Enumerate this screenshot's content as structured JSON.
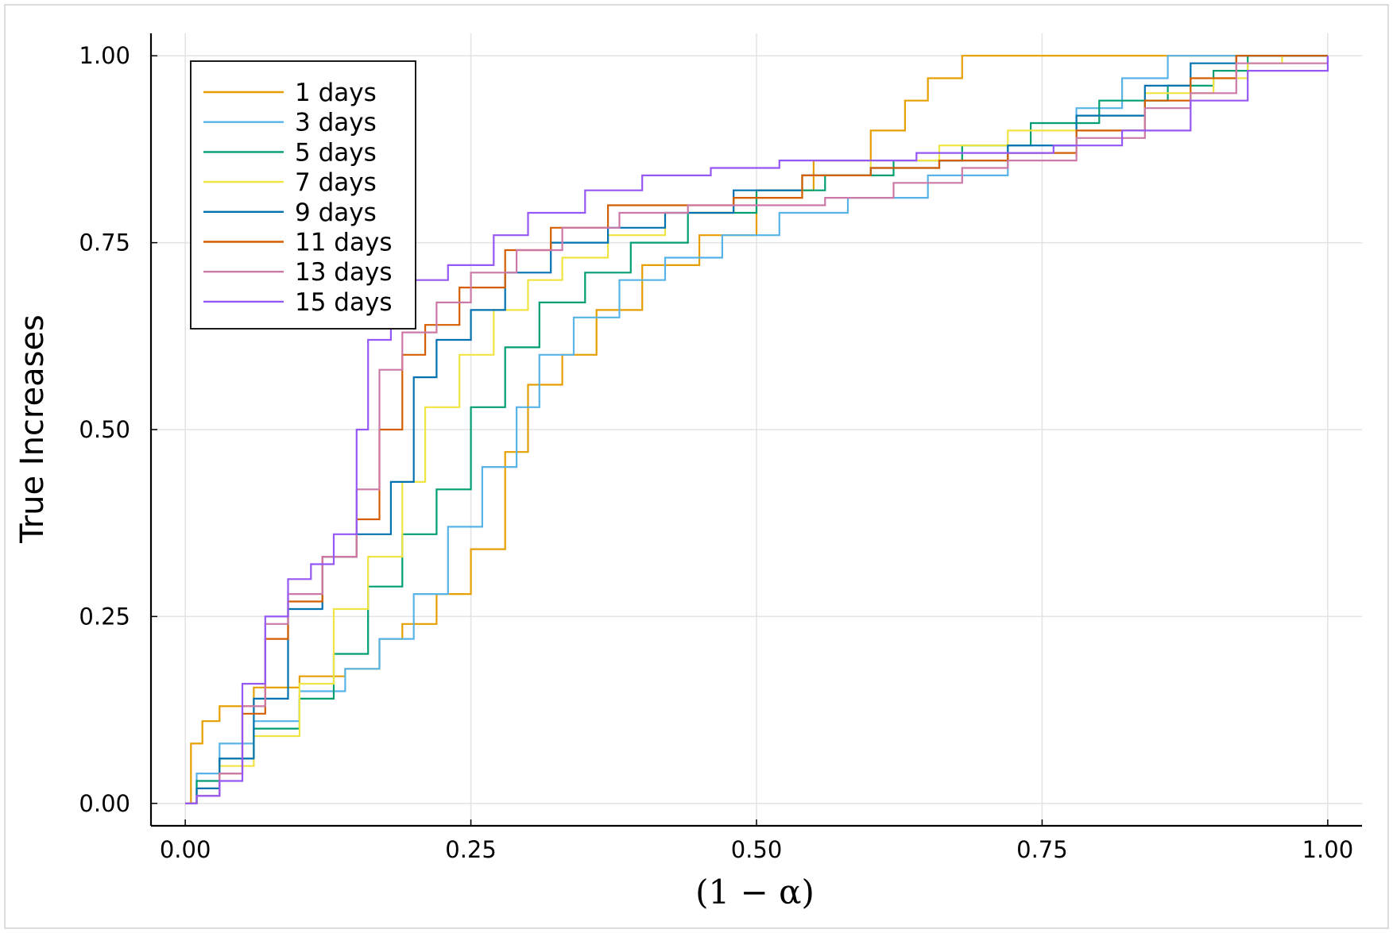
{
  "chart_data": {
    "type": "line",
    "title": "",
    "xlabel": "(1 − α)",
    "ylabel": "True Increases",
    "xlim": [
      -0.03,
      1.03
    ],
    "ylim": [
      -0.03,
      1.03
    ],
    "xticks": [
      "0.00",
      "0.25",
      "0.50",
      "0.75",
      "1.00"
    ],
    "yticks": [
      "0.00",
      "0.25",
      "0.50",
      "0.75",
      "1.00"
    ],
    "grid": true,
    "legend_position": "top-left",
    "series": [
      {
        "name": "1 days",
        "color": "#e69f00",
        "x": [
          0,
          0.005,
          0.015,
          0.03,
          0.06,
          0.1,
          0.14,
          0.17,
          0.19,
          0.22,
          0.25,
          0.28,
          0.3,
          0.33,
          0.36,
          0.4,
          0.45,
          0.5,
          0.55,
          0.6,
          0.63,
          0.65,
          0.68,
          0.7,
          0.8,
          1.0
        ],
        "y": [
          0,
          0.08,
          0.11,
          0.13,
          0.155,
          0.17,
          0.18,
          0.22,
          0.24,
          0.28,
          0.34,
          0.47,
          0.56,
          0.6,
          0.66,
          0.72,
          0.76,
          0.82,
          0.86,
          0.9,
          0.94,
          0.97,
          1.0,
          1.0,
          1.0,
          1.0
        ]
      },
      {
        "name": "3 days",
        "color": "#56b4e9",
        "x": [
          0,
          0.01,
          0.03,
          0.06,
          0.1,
          0.14,
          0.17,
          0.2,
          0.23,
          0.26,
          0.29,
          0.31,
          0.34,
          0.38,
          0.42,
          0.47,
          0.52,
          0.58,
          0.65,
          0.72,
          0.78,
          0.82,
          0.86,
          0.9,
          1.0
        ],
        "y": [
          0,
          0.04,
          0.08,
          0.11,
          0.15,
          0.18,
          0.22,
          0.28,
          0.37,
          0.45,
          0.53,
          0.6,
          0.65,
          0.7,
          0.73,
          0.76,
          0.79,
          0.81,
          0.84,
          0.88,
          0.93,
          0.97,
          1.0,
          1.0,
          1.0
        ]
      },
      {
        "name": "5 days",
        "color": "#009e73",
        "x": [
          0,
          0.01,
          0.03,
          0.06,
          0.1,
          0.13,
          0.16,
          0.19,
          0.22,
          0.25,
          0.28,
          0.31,
          0.35,
          0.39,
          0.44,
          0.5,
          0.56,
          0.62,
          0.68,
          0.74,
          0.8,
          0.86,
          0.9,
          0.93,
          1.0
        ],
        "y": [
          0,
          0.03,
          0.06,
          0.1,
          0.14,
          0.2,
          0.29,
          0.36,
          0.42,
          0.53,
          0.61,
          0.67,
          0.71,
          0.75,
          0.79,
          0.82,
          0.84,
          0.86,
          0.88,
          0.91,
          0.94,
          0.96,
          0.98,
          1.0,
          1.0
        ]
      },
      {
        "name": "7 days",
        "color": "#f0e442",
        "x": [
          0,
          0.01,
          0.03,
          0.06,
          0.1,
          0.13,
          0.16,
          0.19,
          0.21,
          0.24,
          0.27,
          0.3,
          0.33,
          0.37,
          0.42,
          0.48,
          0.54,
          0.6,
          0.66,
          0.72,
          0.78,
          0.84,
          0.9,
          0.93,
          0.96
        ],
        "y": [
          0,
          0.02,
          0.05,
          0.09,
          0.16,
          0.26,
          0.33,
          0.43,
          0.53,
          0.6,
          0.66,
          0.7,
          0.73,
          0.76,
          0.79,
          0.81,
          0.84,
          0.86,
          0.88,
          0.9,
          0.92,
          0.95,
          0.97,
          0.99,
          1.0
        ]
      },
      {
        "name": "9 days",
        "color": "#0072b2",
        "x": [
          0,
          0.01,
          0.03,
          0.06,
          0.09,
          0.12,
          0.15,
          0.18,
          0.2,
          0.22,
          0.25,
          0.28,
          0.32,
          0.37,
          0.42,
          0.48,
          0.54,
          0.6,
          0.66,
          0.72,
          0.78,
          0.84,
          0.88,
          0.92,
          1.0
        ],
        "y": [
          0,
          0.02,
          0.06,
          0.14,
          0.26,
          0.33,
          0.36,
          0.43,
          0.57,
          0.62,
          0.66,
          0.71,
          0.75,
          0.77,
          0.79,
          0.82,
          0.84,
          0.85,
          0.86,
          0.88,
          0.92,
          0.96,
          0.99,
          1.0,
          1.0
        ]
      },
      {
        "name": "11 days",
        "color": "#d55e00",
        "x": [
          0,
          0.01,
          0.03,
          0.05,
          0.07,
          0.09,
          0.12,
          0.15,
          0.17,
          0.19,
          0.21,
          0.24,
          0.28,
          0.32,
          0.37,
          0.42,
          0.48,
          0.54,
          0.6,
          0.66,
          0.72,
          0.78,
          0.84,
          0.88,
          0.92,
          1.0
        ],
        "y": [
          0,
          0.01,
          0.04,
          0.12,
          0.22,
          0.27,
          0.33,
          0.38,
          0.5,
          0.6,
          0.64,
          0.69,
          0.74,
          0.77,
          0.8,
          0.8,
          0.81,
          0.84,
          0.85,
          0.86,
          0.87,
          0.9,
          0.94,
          0.97,
          1.0,
          1.0
        ]
      },
      {
        "name": "13 days",
        "color": "#cc79a7",
        "x": [
          0,
          0.01,
          0.03,
          0.05,
          0.07,
          0.09,
          0.12,
          0.15,
          0.17,
          0.19,
          0.22,
          0.25,
          0.29,
          0.33,
          0.38,
          0.44,
          0.5,
          0.56,
          0.62,
          0.68,
          0.72,
          0.78,
          0.84,
          0.88,
          0.92,
          1.0
        ],
        "y": [
          0,
          0.01,
          0.04,
          0.13,
          0.24,
          0.28,
          0.33,
          0.42,
          0.58,
          0.63,
          0.67,
          0.71,
          0.74,
          0.77,
          0.79,
          0.8,
          0.8,
          0.81,
          0.83,
          0.85,
          0.86,
          0.89,
          0.93,
          0.95,
          0.99,
          1.0
        ]
      },
      {
        "name": "15 days",
        "color": "#9558f4",
        "x": [
          0,
          0.01,
          0.03,
          0.05,
          0.07,
          0.09,
          0.11,
          0.13,
          0.15,
          0.16,
          0.18,
          0.2,
          0.23,
          0.27,
          0.3,
          0.35,
          0.4,
          0.46,
          0.52,
          0.58,
          0.64,
          0.7,
          0.76,
          0.82,
          0.88,
          0.93,
          1.0
        ],
        "y": [
          0,
          0.01,
          0.03,
          0.16,
          0.25,
          0.3,
          0.32,
          0.36,
          0.5,
          0.62,
          0.68,
          0.7,
          0.72,
          0.76,
          0.79,
          0.82,
          0.84,
          0.85,
          0.86,
          0.86,
          0.87,
          0.87,
          0.88,
          0.9,
          0.94,
          0.98,
          1.0
        ]
      }
    ]
  }
}
